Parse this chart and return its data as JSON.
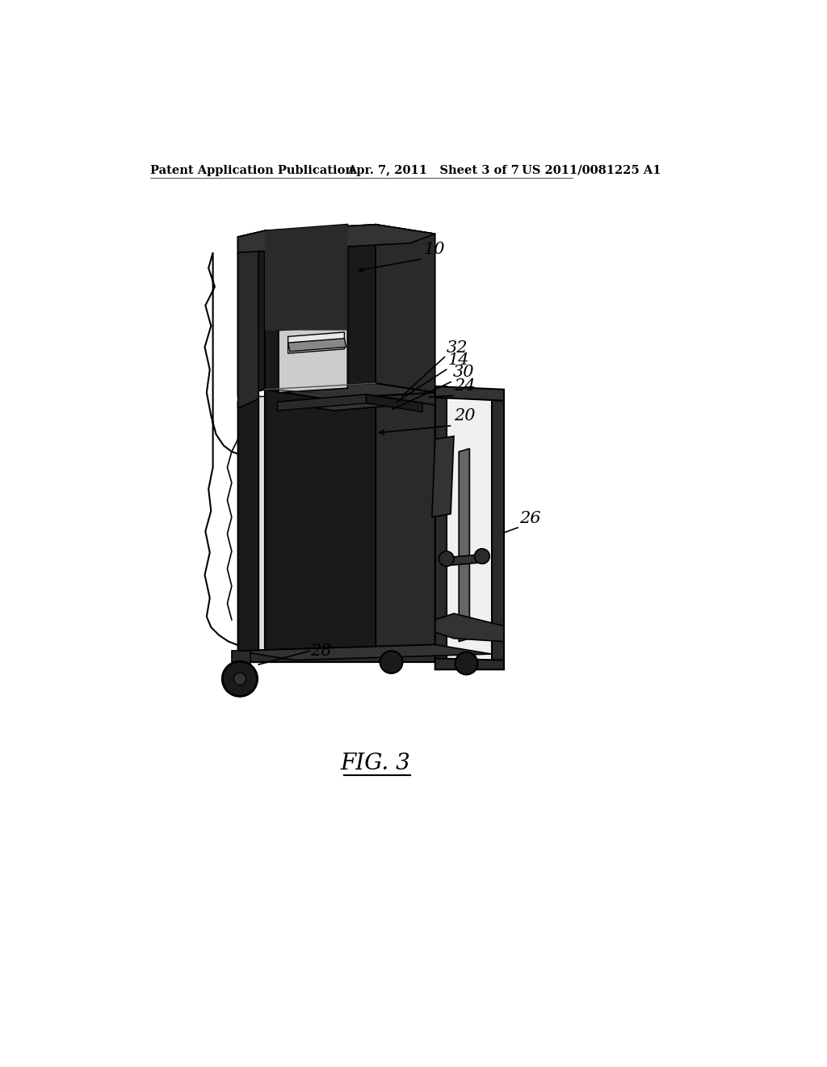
{
  "background_color": "#ffffff",
  "header_left": "Patent Application Publication",
  "header_center": "Apr. 7, 2011   Sheet 3 of 7",
  "header_right": "US 2011/0081225 A1",
  "figure_label": "FIG. 3",
  "header_fontsize": 10.5,
  "fig_label_fontsize": 20,
  "dark1": "#1a1a1a",
  "dark2": "#2a2a2a",
  "dark3": "#333333",
  "dark4": "#444444",
  "mid_gray": "#666666",
  "light_gray": "#aaaaaa",
  "white": "#ffffff",
  "black": "#000000"
}
